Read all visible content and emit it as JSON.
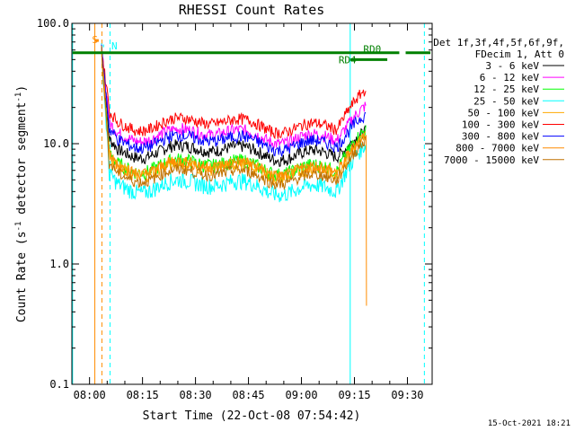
{
  "chart_data": {
    "type": "line",
    "title": "RHESSI Count Rates",
    "xlabel": "Start Time (22-Oct-08 07:54:42)",
    "ylabel_main": "Count Rate (s",
    "ylabel_sup1": "-1",
    "ylabel_mid": " detector segment",
    "ylabel_sup2": "-1",
    "ylabel_end": ")",
    "yscale": "log",
    "ylim": [
      0.1,
      100
    ],
    "xlim_minutes": [
      -5,
      97
    ],
    "x_ticks": [
      {
        "label": "08:00",
        "minutes": 0
      },
      {
        "label": "08:15",
        "minutes": 15
      },
      {
        "label": "08:30",
        "minutes": 30
      },
      {
        "label": "08:45",
        "minutes": 45
      },
      {
        "label": "09:00",
        "minutes": 60
      },
      {
        "label": "09:15",
        "minutes": 75
      },
      {
        "label": "09:30",
        "minutes": 90
      }
    ],
    "y_ticks": [
      {
        "label": "0.1",
        "value": 0.1
      },
      {
        "label": "1.0",
        "value": 1
      },
      {
        "label": "10.0",
        "value": 10
      },
      {
        "label": "100.0",
        "value": 100
      }
    ],
    "legend_header": [
      "Det 1f,3f,4f,5f,6f,9f,",
      "FDecim 1, Att 0"
    ],
    "series": [
      {
        "name": "3 - 6 keV",
        "color": "#000000",
        "level": 9.5,
        "ripple": 0.12,
        "end": 12.5
      },
      {
        "name": "6 - 12 keV",
        "color": "#ff00ff",
        "level": 13.0,
        "ripple": 0.12,
        "end": 20.5
      },
      {
        "name": "12 - 25 keV",
        "color": "#00ff00",
        "level": 7.2,
        "ripple": 0.14,
        "end": 13.0
      },
      {
        "name": "25 - 50 keV",
        "color": "#00ffff",
        "level": 4.9,
        "ripple": 0.16,
        "end": 9.8
      },
      {
        "name": "50 - 100 keV",
        "color": "#ffaa00",
        "level": 6.8,
        "ripple": 0.14,
        "end": 11.5
      },
      {
        "name": "100 - 300 keV",
        "color": "#ff0000",
        "level": 16.0,
        "ripple": 0.11,
        "end": 28.0
      },
      {
        "name": "300 - 800 keV",
        "color": "#0000ff",
        "level": 11.5,
        "ripple": 0.12,
        "end": 17.5
      },
      {
        "name": "800 - 7000 keV",
        "color": "#ff8c00",
        "level": 7.0,
        "ripple": 0.12,
        "end": 11.8
      },
      {
        "name": "7000 - 15000 keV",
        "color": "#c07000",
        "level": 6.0,
        "ripple": 0.11,
        "end": 10.5
      }
    ],
    "markers": [
      {
        "label": "S",
        "color": "#ff8c00",
        "x_start": 1.6,
        "x_end": 2.6,
        "y": 72
      },
      {
        "label": "N",
        "color": "#00ffff",
        "x_start": 3.8,
        "x_end": 4.1,
        "y": 65
      },
      {
        "label": "RD0",
        "color": "#008000",
        "x_start": -4.8,
        "x_end": 96.5,
        "y": 57
      },
      {
        "label": "RD4",
        "color": "#008000",
        "x_start": 73.8,
        "x_end": 84.3,
        "y": 50
      }
    ],
    "footer_stamp": "15-Oct-2021 18:21"
  }
}
